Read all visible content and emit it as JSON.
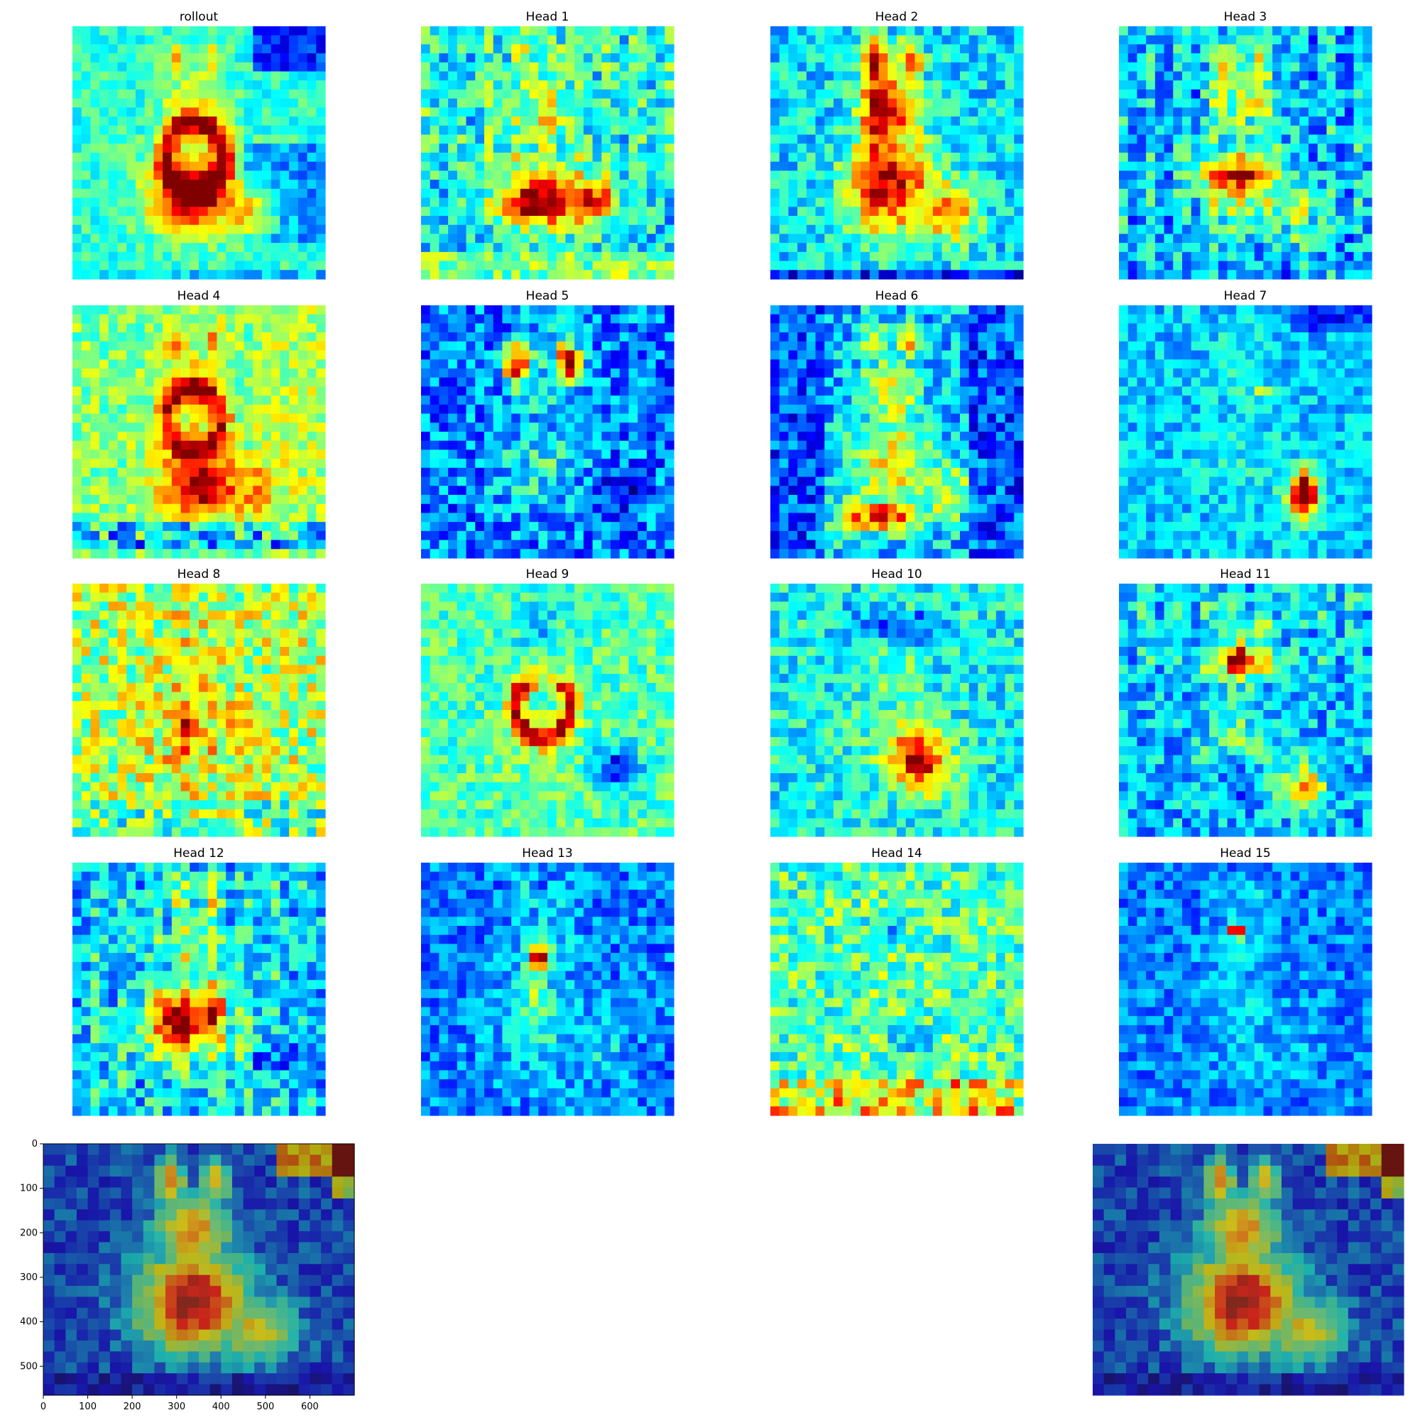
{
  "figure": {
    "colormap": "jet",
    "grid_size": [
      28,
      28
    ],
    "overlay_alpha": 0.6,
    "overlay_base_color": "#7a6450"
  },
  "chart_data": [
    {
      "type": "heatmap",
      "title": "rollout",
      "pattern": "rollout"
    },
    {
      "type": "heatmap",
      "title": "Head 1",
      "pattern": "head1"
    },
    {
      "type": "heatmap",
      "title": "Head 2",
      "pattern": "head2"
    },
    {
      "type": "heatmap",
      "title": "Head 3",
      "pattern": "head3"
    },
    {
      "type": "heatmap",
      "title": "Head 4",
      "pattern": "head4"
    },
    {
      "type": "heatmap",
      "title": "Head 5",
      "pattern": "head5"
    },
    {
      "type": "heatmap",
      "title": "Head 6",
      "pattern": "head6"
    },
    {
      "type": "heatmap",
      "title": "Head 7",
      "pattern": "head7"
    },
    {
      "type": "heatmap",
      "title": "Head 8",
      "pattern": "head8"
    },
    {
      "type": "heatmap",
      "title": "Head 9",
      "pattern": "head9"
    },
    {
      "type": "heatmap",
      "title": "Head 10",
      "pattern": "head10"
    },
    {
      "type": "heatmap",
      "title": "Head 11",
      "pattern": "head11"
    },
    {
      "type": "heatmap",
      "title": "Head 12",
      "pattern": "head12"
    },
    {
      "type": "heatmap",
      "title": "Head 13",
      "pattern": "head13"
    },
    {
      "type": "heatmap",
      "title": "Head 14",
      "pattern": "head14"
    },
    {
      "type": "heatmap",
      "title": "Head 15",
      "pattern": "head15"
    },
    {
      "type": "heatmap",
      "title": "",
      "pattern": "overlay",
      "overlay": true,
      "axes": true,
      "xlim": [
        0,
        700
      ],
      "ylim": [
        565,
        0
      ],
      "xticks": [
        0,
        100,
        200,
        300,
        400,
        500,
        600
      ],
      "yticks": [
        0,
        100,
        200,
        300,
        400,
        500
      ]
    },
    {
      "type": "heatmap",
      "title": "",
      "pattern": "overlay",
      "overlay": true,
      "axes": false
    }
  ]
}
